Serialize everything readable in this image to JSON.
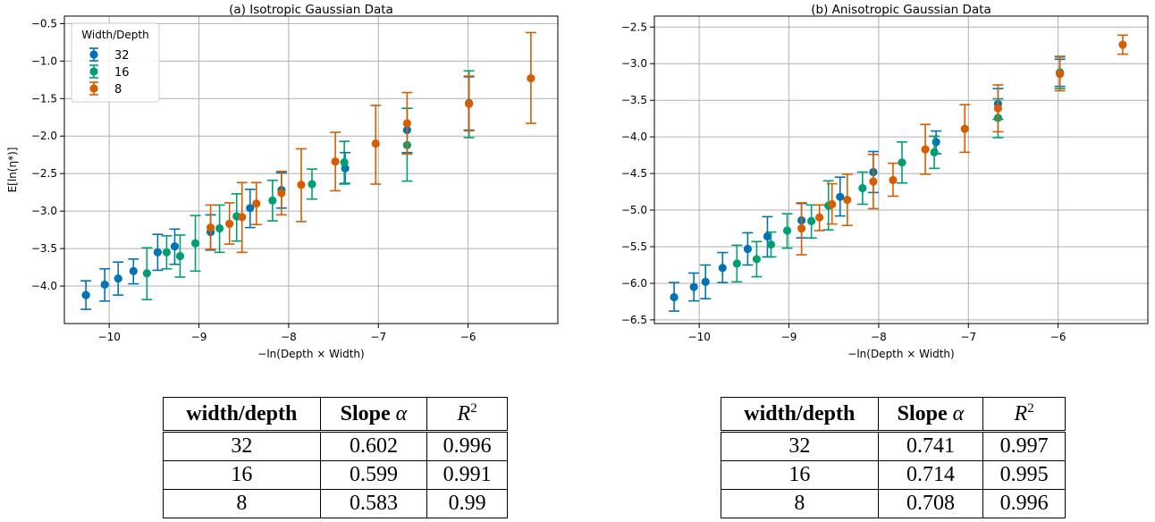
{
  "chart_data": [
    {
      "type": "scatter",
      "title": "(a) Isotropic Gaussian Data",
      "xlabel": "−ln(Depth × Width)",
      "ylabel": "E[ln(η*)]",
      "xlim": [
        -10.5,
        -5.0
      ],
      "ylim": [
        -4.5,
        -0.4
      ],
      "xticks": [
        -10,
        -9,
        -8,
        -7,
        -6
      ],
      "yticks": [
        -4.0,
        -3.5,
        -3.0,
        -2.5,
        -2.0,
        -1.5,
        -1.0,
        -0.5
      ],
      "xtick_labels": [
        "−10",
        "−9",
        "−8",
        "−7",
        "−6"
      ],
      "ytick_labels": [
        "−4.0",
        "−3.5",
        "−3.0",
        "−2.5",
        "−2.0",
        "−1.5",
        "−1.0",
        "−0.5"
      ],
      "grid": true,
      "legend": {
        "title": "Width/Depth",
        "placement": "top-left"
      },
      "series": [
        {
          "name": "32",
          "color": "#0173B2",
          "points": [
            {
              "x": -10.26,
              "y": -4.12,
              "lo": -4.31,
              "hi": -3.93
            },
            {
              "x": -10.05,
              "y": -3.98,
              "lo": -4.2,
              "hi": -3.77
            },
            {
              "x": -9.9,
              "y": -3.9,
              "lo": -4.12,
              "hi": -3.68
            },
            {
              "x": -9.73,
              "y": -3.8,
              "lo": -3.97,
              "hi": -3.64
            },
            {
              "x": -9.46,
              "y": -3.55,
              "lo": -3.79,
              "hi": -3.31
            },
            {
              "x": -9.27,
              "y": -3.47,
              "lo": -3.71,
              "hi": -3.24
            },
            {
              "x": -8.87,
              "y": -3.28,
              "lo": -3.52,
              "hi": -3.05
            },
            {
              "x": -8.43,
              "y": -2.96,
              "lo": -3.22,
              "hi": -2.71
            },
            {
              "x": -8.08,
              "y": -2.72,
              "lo": -2.96,
              "hi": -2.49
            },
            {
              "x": -7.37,
              "y": -2.43,
              "lo": -2.63,
              "hi": -2.22
            },
            {
              "x": -6.68,
              "y": -1.92,
              "lo": -2.22,
              "hi": -1.63
            },
            {
              "x": -5.99,
              "y": -1.56,
              "lo": -1.92,
              "hi": -1.21
            }
          ]
        },
        {
          "name": "16",
          "color": "#029E73",
          "points": [
            {
              "x": -9.58,
              "y": -3.83,
              "lo": -4.18,
              "hi": -3.49
            },
            {
              "x": -9.36,
              "y": -3.55,
              "lo": -3.77,
              "hi": -3.33
            },
            {
              "x": -9.21,
              "y": -3.6,
              "lo": -3.88,
              "hi": -3.32
            },
            {
              "x": -9.04,
              "y": -3.43,
              "lo": -3.8,
              "hi": -3.06
            },
            {
              "x": -8.77,
              "y": -3.23,
              "lo": -3.55,
              "hi": -2.92
            },
            {
              "x": -8.58,
              "y": -3.07,
              "lo": -3.4,
              "hi": -2.77
            },
            {
              "x": -8.18,
              "y": -2.86,
              "lo": -3.13,
              "hi": -2.59
            },
            {
              "x": -7.74,
              "y": -2.64,
              "lo": -2.84,
              "hi": -2.44
            },
            {
              "x": -7.38,
              "y": -2.35,
              "lo": -2.64,
              "hi": -2.07
            },
            {
              "x": -6.68,
              "y": -2.12,
              "lo": -2.6,
              "hi": -1.63
            },
            {
              "x": -5.99,
              "y": -1.57,
              "lo": -2.02,
              "hi": -1.13
            }
          ]
        },
        {
          "name": "8",
          "color": "#D55E00",
          "points": [
            {
              "x": -8.87,
              "y": -3.22,
              "lo": -3.51,
              "hi": -2.92
            },
            {
              "x": -8.66,
              "y": -3.17,
              "lo": -3.44,
              "hi": -2.89
            },
            {
              "x": -8.52,
              "y": -3.08,
              "lo": -3.55,
              "hi": -2.62
            },
            {
              "x": -8.36,
              "y": -2.9,
              "lo": -3.18,
              "hi": -2.62
            },
            {
              "x": -8.08,
              "y": -2.76,
              "lo": -3.05,
              "hi": -2.47
            },
            {
              "x": -7.86,
              "y": -2.65,
              "lo": -3.14,
              "hi": -2.17
            },
            {
              "x": -7.48,
              "y": -2.34,
              "lo": -2.73,
              "hi": -1.95
            },
            {
              "x": -7.03,
              "y": -2.1,
              "lo": -2.64,
              "hi": -1.59
            },
            {
              "x": -6.68,
              "y": -1.83,
              "lo": -2.24,
              "hi": -1.42
            },
            {
              "x": -5.99,
              "y": -1.57,
              "lo": -1.93,
              "hi": -1.2
            },
            {
              "x": -5.3,
              "y": -1.23,
              "lo": -1.83,
              "hi": -0.62
            }
          ]
        }
      ]
    },
    {
      "type": "scatter",
      "title": "(b) Anisotropic Gaussian Data",
      "xlabel": "−ln(Depth × Width)",
      "ylabel": "",
      "xlim": [
        -10.5,
        -5.0
      ],
      "ylim": [
        -6.55,
        -2.35
      ],
      "xticks": [
        -10,
        -9,
        -8,
        -7,
        -6
      ],
      "yticks": [
        -6.5,
        -6.0,
        -5.5,
        -5.0,
        -4.5,
        -4.0,
        -3.5,
        -3.0,
        -2.5
      ],
      "xtick_labels": [
        "−10",
        "−9",
        "−8",
        "−7",
        "−6"
      ],
      "ytick_labels": [
        "−6.5",
        "−6.0",
        "−5.5",
        "−5.0",
        "−4.5",
        "−4.0",
        "−3.5",
        "−3.0",
        "−2.5"
      ],
      "grid": true,
      "series": [
        {
          "name": "32",
          "color": "#0173B2",
          "points": [
            {
              "x": -10.28,
              "y": -6.19,
              "lo": -6.38,
              "hi": -5.99
            },
            {
              "x": -10.06,
              "y": -6.05,
              "lo": -6.24,
              "hi": -5.86
            },
            {
              "x": -9.93,
              "y": -5.98,
              "lo": -6.21,
              "hi": -5.75
            },
            {
              "x": -9.74,
              "y": -5.79,
              "lo": -5.99,
              "hi": -5.58
            },
            {
              "x": -9.46,
              "y": -5.53,
              "lo": -5.75,
              "hi": -5.31
            },
            {
              "x": -9.24,
              "y": -5.36,
              "lo": -5.64,
              "hi": -5.09
            },
            {
              "x": -8.86,
              "y": -5.14,
              "lo": -5.38,
              "hi": -4.91
            },
            {
              "x": -8.43,
              "y": -4.82,
              "lo": -5.08,
              "hi": -4.55
            },
            {
              "x": -8.06,
              "y": -4.48,
              "lo": -4.76,
              "hi": -4.2
            },
            {
              "x": -7.36,
              "y": -4.07,
              "lo": -4.23,
              "hi": -3.92
            },
            {
              "x": -6.67,
              "y": -3.55,
              "lo": -3.76,
              "hi": -3.34
            },
            {
              "x": -5.98,
              "y": -3.12,
              "lo": -3.31,
              "hi": -2.94
            }
          ]
        },
        {
          "name": "16",
          "color": "#029E73",
          "points": [
            {
              "x": -9.58,
              "y": -5.73,
              "lo": -5.98,
              "hi": -5.48
            },
            {
              "x": -9.36,
              "y": -5.67,
              "lo": -5.91,
              "hi": -5.43
            },
            {
              "x": -9.2,
              "y": -5.47,
              "lo": -5.64,
              "hi": -5.3
            },
            {
              "x": -9.02,
              "y": -5.28,
              "lo": -5.52,
              "hi": -5.05
            },
            {
              "x": -8.75,
              "y": -5.15,
              "lo": -5.38,
              "hi": -4.93
            },
            {
              "x": -8.56,
              "y": -4.94,
              "lo": -5.27,
              "hi": -4.6
            },
            {
              "x": -8.18,
              "y": -4.7,
              "lo": -4.92,
              "hi": -4.48
            },
            {
              "x": -7.74,
              "y": -4.35,
              "lo": -4.63,
              "hi": -4.07
            },
            {
              "x": -7.38,
              "y": -4.21,
              "lo": -4.43,
              "hi": -3.99
            },
            {
              "x": -6.67,
              "y": -3.74,
              "lo": -4.01,
              "hi": -3.48
            },
            {
              "x": -5.98,
              "y": -3.12,
              "lo": -3.34,
              "hi": -2.9
            }
          ]
        },
        {
          "name": "8",
          "color": "#D55E00",
          "points": [
            {
              "x": -8.86,
              "y": -5.25,
              "lo": -5.61,
              "hi": -4.9
            },
            {
              "x": -8.66,
              "y": -5.1,
              "lo": -5.28,
              "hi": -4.93
            },
            {
              "x": -8.52,
              "y": -4.92,
              "lo": -5.19,
              "hi": -4.64
            },
            {
              "x": -8.35,
              "y": -4.86,
              "lo": -5.21,
              "hi": -4.51
            },
            {
              "x": -8.06,
              "y": -4.61,
              "lo": -4.98,
              "hi": -4.24
            },
            {
              "x": -7.84,
              "y": -4.59,
              "lo": -4.81,
              "hi": -4.36
            },
            {
              "x": -7.48,
              "y": -4.17,
              "lo": -4.51,
              "hi": -3.83
            },
            {
              "x": -7.04,
              "y": -3.89,
              "lo": -4.21,
              "hi": -3.56
            },
            {
              "x": -6.67,
              "y": -3.61,
              "lo": -3.93,
              "hi": -3.29
            },
            {
              "x": -5.98,
              "y": -3.14,
              "lo": -3.37,
              "hi": -2.91
            },
            {
              "x": -5.28,
              "y": -2.74,
              "lo": -2.87,
              "hi": -2.61
            }
          ]
        }
      ]
    }
  ],
  "tables": [
    {
      "headers": [
        "width/depth",
        "Slope",
        "α",
        "R",
        "2"
      ],
      "rows": [
        [
          "32",
          "0.602",
          "0.996"
        ],
        [
          "16",
          "0.599",
          "0.991"
        ],
        [
          "8",
          "0.583",
          "0.99"
        ]
      ]
    },
    {
      "headers": [
        "width/depth",
        "Slope",
        "α",
        "R",
        "2"
      ],
      "rows": [
        [
          "32",
          "0.741",
          "0.997"
        ],
        [
          "16",
          "0.714",
          "0.995"
        ],
        [
          "8",
          "0.708",
          "0.996"
        ]
      ]
    }
  ]
}
